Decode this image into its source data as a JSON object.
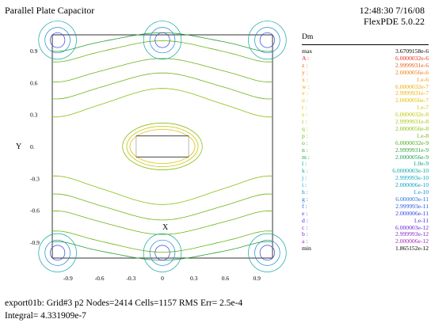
{
  "header": {
    "title": "Parallel Plate Capacitor",
    "time_date": "12:48:30 7/16/08",
    "version": "FlexPDE 5.0.22"
  },
  "chart_data": {
    "type": "contour",
    "xlabel": "X",
    "ylabel": "Y",
    "xlim": [
      -1.05,
      1.05
    ],
    "ylim": [
      -1.05,
      1.05
    ],
    "xticks": [
      "-0.9",
      "-0.6",
      "-0.3",
      "0",
      "0.3",
      "0.6",
      "0.9"
    ],
    "yticks": [
      "0.9",
      "0.6",
      "0.3",
      "0.",
      "-0.3",
      "-0.6",
      "-0.9"
    ],
    "xtick_values": [
      -0.9,
      -0.6,
      -0.3,
      0,
      0.3,
      0.6,
      0.9
    ],
    "ytick_values": [
      0.9,
      0.6,
      0.3,
      0,
      -0.3,
      -0.6,
      -0.9
    ],
    "plates": [
      {
        "x": [
          -0.25,
          0.25
        ],
        "y": 0.1
      },
      {
        "x": [
          -0.25,
          0.25
        ],
        "y": -0.1
      }
    ],
    "legend": {
      "variable": "Dm",
      "max": "3.6709158e-6",
      "min": "1.865152e-12",
      "levels": [
        {
          "label": "A",
          "value": "6.0000032e-6",
          "color": "#e0301e"
        },
        {
          "label": "z",
          "value": "2.9999931e-6",
          "color": "#e85a14"
        },
        {
          "label": "y",
          "value": "2.0000056e-6",
          "color": "#ee7a10"
        },
        {
          "label": "x",
          "value": "1.e-6",
          "color": "#f29a0c"
        },
        {
          "label": "w",
          "value": "6.0000032e-7",
          "color": "#f0a808"
        },
        {
          "label": "v",
          "value": "2.9999931e-7",
          "color": "#e8b404"
        },
        {
          "label": "u",
          "value": "2.0000056e-7",
          "color": "#e0be04"
        },
        {
          "label": "t",
          "value": "1.e-7",
          "color": "#d6c404"
        },
        {
          "label": "s",
          "value": "6.0000032e-8",
          "color": "#c4c608"
        },
        {
          "label": "r",
          "value": "2.9999931e-8",
          "color": "#a8c40c"
        },
        {
          "label": "q",
          "value": "2.0000056e-8",
          "color": "#8cbe10"
        },
        {
          "label": "p",
          "value": "1.e-8",
          "color": "#6cb414"
        },
        {
          "label": "o",
          "value": "6.0000032e-9",
          "color": "#48aa18"
        },
        {
          "label": "n",
          "value": "2.9999931e-9",
          "color": "#2aa034"
        },
        {
          "label": "m",
          "value": "2.0000056e-9",
          "color": "#18a058"
        },
        {
          "label": "l",
          "value": "1.0e-9",
          "color": "#0ea27c"
        },
        {
          "label": "k",
          "value": "6.0000003e-10",
          "color": "#0aa6a0"
        },
        {
          "label": "j",
          "value": "2.999993e-10",
          "color": "#0aa6bc"
        },
        {
          "label": "i",
          "value": "2.000006e-10",
          "color": "#0c9ccc"
        },
        {
          "label": "h",
          "value": "1.e-10",
          "color": "#1488d4"
        },
        {
          "label": "g",
          "value": "6.000003e-11",
          "color": "#1c70d8"
        },
        {
          "label": "f",
          "value": "2.999993e-11",
          "color": "#2458dc"
        },
        {
          "label": "e",
          "value": "2.000006e-11",
          "color": "#3040dc"
        },
        {
          "label": "d",
          "value": "1.e-11",
          "color": "#4430d8"
        },
        {
          "label": "c",
          "value": "6.000003e-12",
          "color": "#6428d0"
        },
        {
          "label": "b",
          "value": "2.999993e-12",
          "color": "#8424c8"
        },
        {
          "label": "a",
          "value": "2.000006e-12",
          "color": "#a024c0"
        }
      ]
    }
  },
  "footer": {
    "summary": "export01b:  Grid#3  p2  Nodes=2414 Cells=1157 RMS Err= 2.5e-4",
    "integral": "Integral=  4.331909e-7"
  }
}
